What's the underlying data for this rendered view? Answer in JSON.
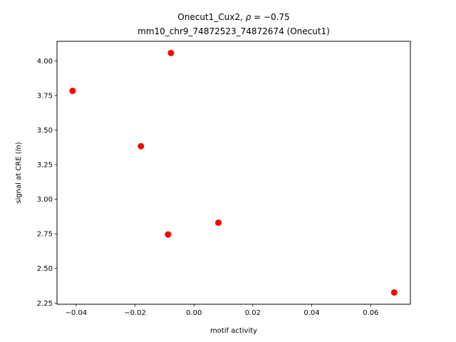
{
  "chart_data": {
    "type": "scatter",
    "title_line1": "Onecut1_Cux2, ρ = −0.75",
    "title_line2": "mm10_chr9_74872523_74872674 (Onecut1)",
    "xlabel": "motif activity",
    "ylabel": "signal at CRE (ln)",
    "xlim": [
      -0.0465,
      0.0735
    ],
    "ylim": [
      2.241,
      4.141
    ],
    "xticks": [
      -0.04,
      -0.02,
      0.0,
      0.02,
      0.04,
      0.06
    ],
    "xtick_labels": [
      "−0.04",
      "−0.02",
      "0.00",
      "0.02",
      "0.04",
      "0.06"
    ],
    "yticks": [
      2.25,
      2.5,
      2.75,
      3.0,
      3.25,
      3.5,
      3.75,
      4.0
    ],
    "ytick_labels": [
      "2.25",
      "2.50",
      "2.75",
      "3.00",
      "3.25",
      "3.50",
      "3.75",
      "4.00"
    ],
    "grid": false,
    "marker_color": "#ff0000",
    "points": [
      {
        "x": -0.0412,
        "y": 3.783
      },
      {
        "x": -0.018,
        "y": 3.383
      },
      {
        "x": -0.0078,
        "y": 4.057
      },
      {
        "x": -0.0088,
        "y": 2.745
      },
      {
        "x": 0.0083,
        "y": 2.83
      },
      {
        "x": 0.068,
        "y": 2.326
      }
    ]
  }
}
